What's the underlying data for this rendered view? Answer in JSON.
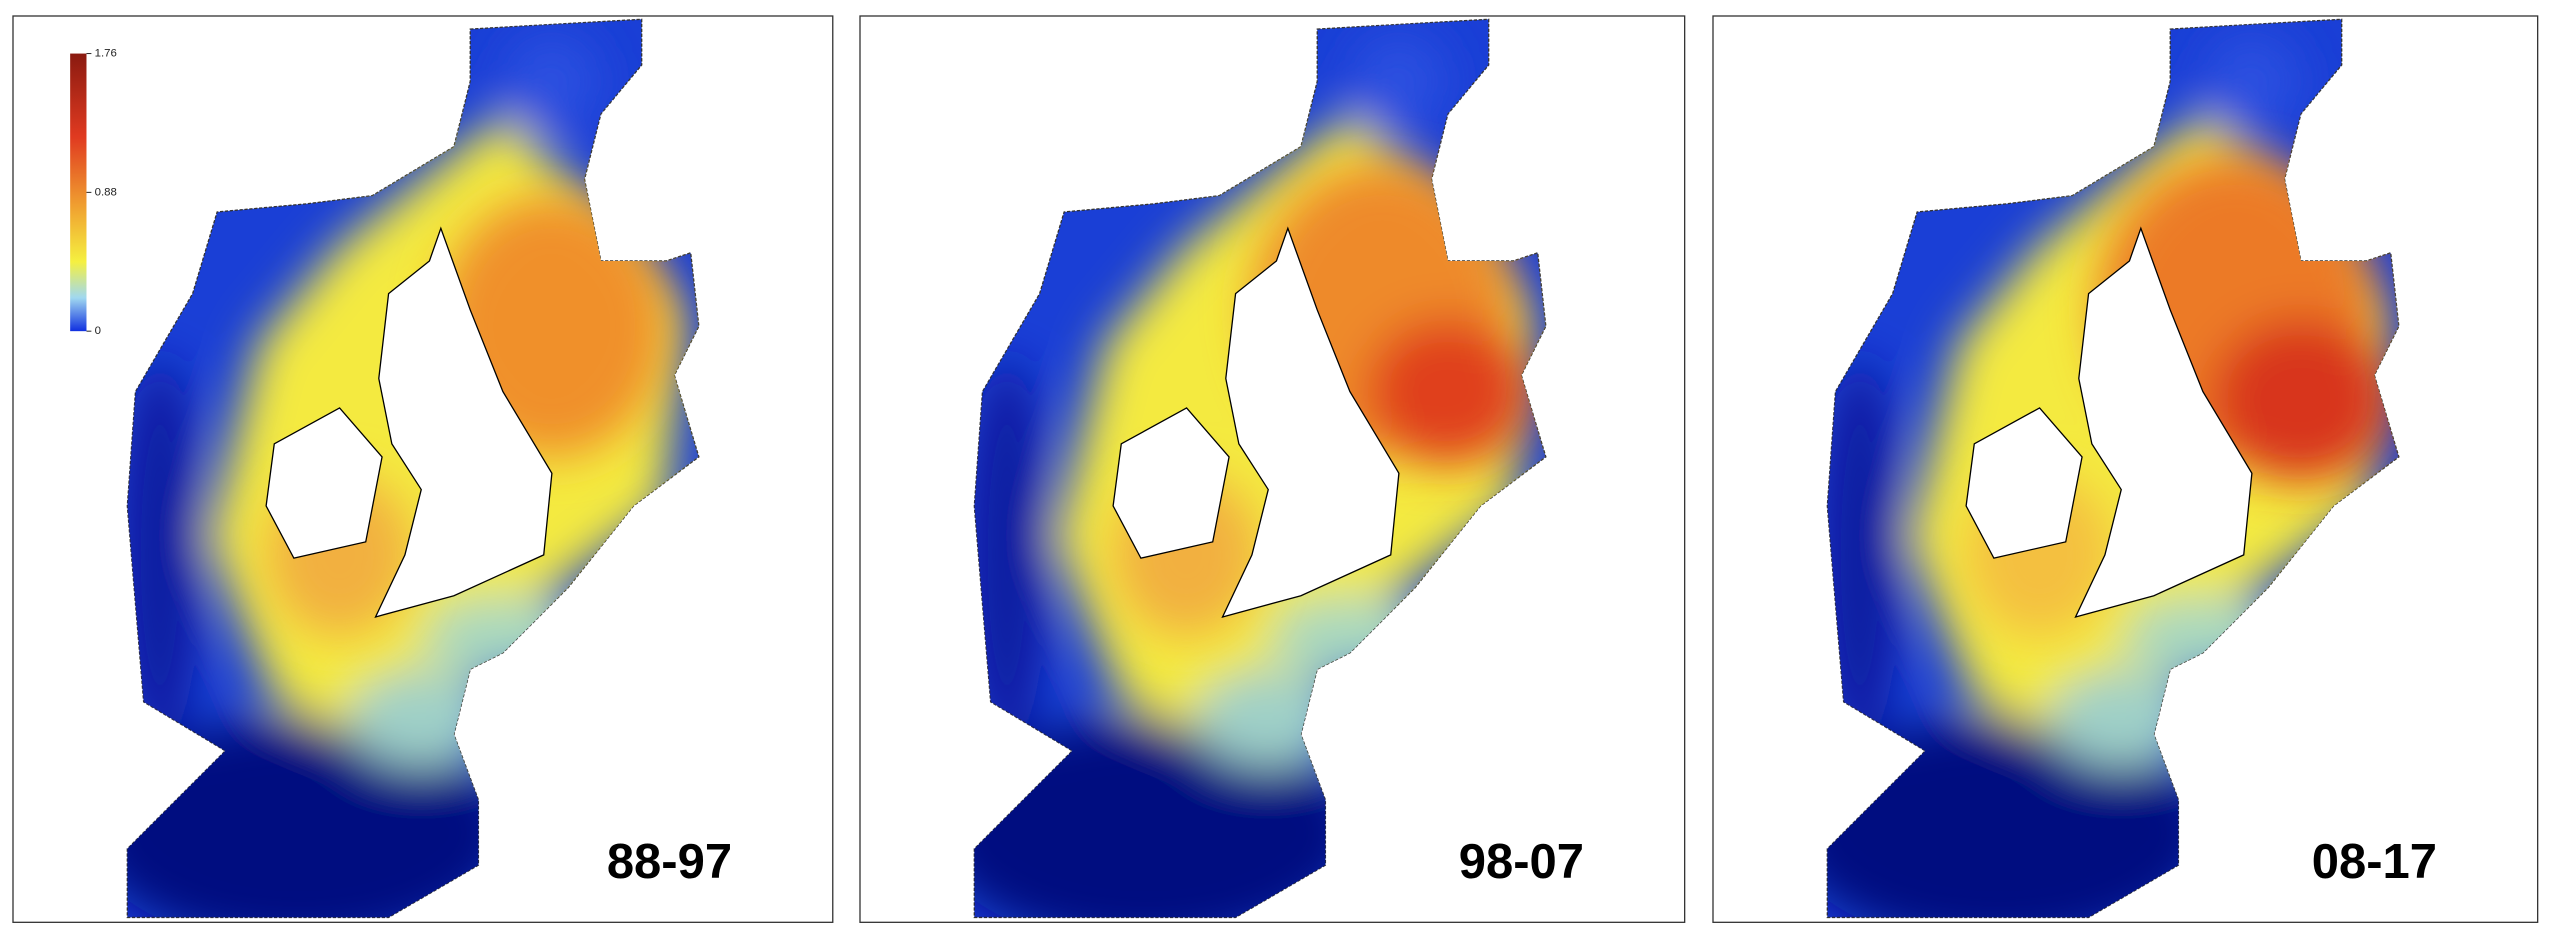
{
  "colorbar": {
    "lim": [
      0,
      1.76
    ],
    "ticks": [
      0,
      0.88,
      1.76
    ]
  },
  "panels": [
    {
      "label": "88-97"
    },
    {
      "label": "98-07"
    },
    {
      "label": "08-17"
    }
  ]
}
